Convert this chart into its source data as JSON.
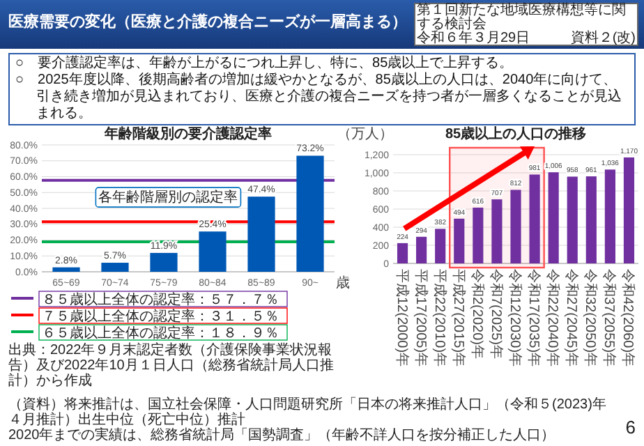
{
  "chart_data": [
    {
      "type": "other",
      "title": "医療需要の変化（医療と介護の複合ニーズが一層高まる）",
      "annotations": [
        "第１回新たな地域医療構想等に関する検討会",
        "令和６年３月29日",
        "資料２(改)",
        "○　要介護認定率は、年齢が上がるにつれ上昇し、特に、85歳以上で上昇する。",
        "○　2025年度以降、後期高齢者の増加は緩やかとなるが、85歳以上の人口は、2040年に向けて、引き続き増加が見込まれており、医療と介護の複合ニーズを持つ者が一層多くなることが見込まれる。",
        "6"
      ]
    },
    {
      "type": "bar",
      "title": "年齢階級別の要介護認定率",
      "xlabel": "歳",
      "categories": [
        "65~69",
        "70~74",
        "75~79",
        "80~84",
        "85~89",
        "90~"
      ],
      "values": [
        2.8,
        5.7,
        11.9,
        25.4,
        47.4,
        73.2
      ],
      "value_labels": [
        "2.8%",
        "5.7%",
        "11.9%",
        "25.4%",
        "47.4%",
        "73.2%"
      ],
      "color": "#0058b5",
      "ylim": [
        0,
        80
      ],
      "yticks": [
        {
          "value": 0,
          "label": "0.0%"
        },
        {
          "value": 10,
          "label": "10.0%"
        },
        {
          "value": 20,
          "label": "20.0%"
        },
        {
          "value": 30,
          "label": "30.0%"
        },
        {
          "value": 40,
          "label": "40.0%"
        },
        {
          "value": 50,
          "label": "50.0%"
        },
        {
          "value": 60,
          "label": "60.0%"
        },
        {
          "value": 70,
          "label": "70.0%"
        },
        {
          "value": 80,
          "label": "80.0%"
        }
      ],
      "grid": "y",
      "legend": "bottom left",
      "ref_lines": [
        {
          "axis": "y",
          "value": 57.7,
          "label": "８５歳以上全体の認定率：５７．７％",
          "color": "#7030a0"
        },
        {
          "axis": "y",
          "value": 31.5,
          "label": "７５歳以上全体の認定率：３１．５％",
          "color": "#ff0000"
        },
        {
          "axis": "y",
          "value": 18.9,
          "label": "６５歳以上全体の認定率：１８．９％",
          "color": "#00b050"
        }
      ],
      "annotations": [
        {
          "text": "各年齢階層別の認定率",
          "x": "85~89",
          "y": 47.4
        },
        "出典：2022年９月末認定者数（介護保険事業状況報告）及び2022年10月１日人口（総務省統計局人口推計）から作成"
      ]
    },
    {
      "type": "bar",
      "title": "85歳以上の人口の推移",
      "ylabel": "（万人）",
      "categories": [
        "平成12(2000)年",
        "平成17(2005)年",
        "平成22(2010)年",
        "平成27(2015)年",
        "令和2(2020)年",
        "令和7(2025)年",
        "令和12(2030)年",
        "令和17(2035)年",
        "令和22(2040)年",
        "令和27(2045)年",
        "令和32(2050)年",
        "令和37(2055)年",
        "令和42(2060)年"
      ],
      "values": [
        224,
        294,
        382,
        494,
        616,
        707,
        812,
        981,
        1006,
        958,
        961,
        1036,
        1170
      ],
      "value_labels": [
        "224",
        "294",
        "382",
        "494",
        "616",
        "707",
        "812",
        "981",
        "1,006",
        "958",
        "961",
        "1,036",
        "1,170"
      ],
      "color": "#7030a0",
      "ylim": [
        0,
        1200
      ],
      "yticks": [
        0,
        200,
        400,
        600,
        800,
        {
          "value": 1000,
          "label": "1,000"
        },
        {
          "value": 1200,
          "label": "1,200"
        }
      ],
      "grid": "y",
      "bands": [
        {
          "axis": "x",
          "from": "平成27(2015)年",
          "to": "令和17(2035)年",
          "color": "#ff5050"
        }
      ],
      "annotations": [
        "（資料）将来推計は、国立社会保障・人口問題研究所「日本の将来推計人口」（令和５(2023)年４月推計）出生中位（死亡中位）推計",
        "2020年までの実績は、総務省統計局「国勢調査」（年齢不詳人口を按分補正した人口）"
      ]
    }
  ]
}
